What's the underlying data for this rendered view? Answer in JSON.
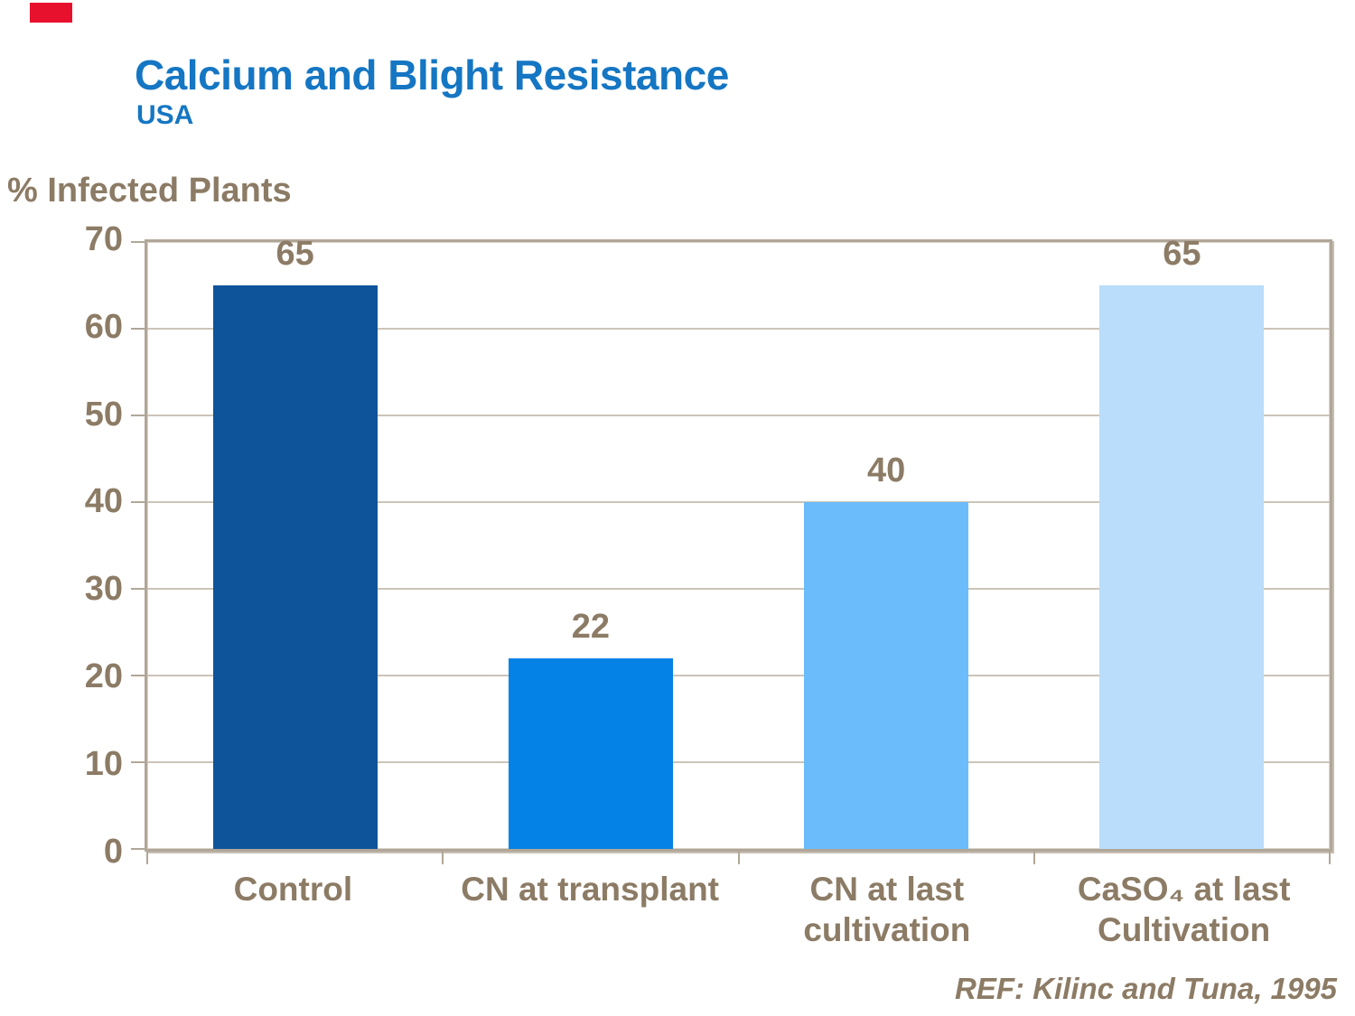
{
  "slide": {
    "title": "Calcium and Blight Resistance",
    "subtitle": "USA",
    "reference": "REF: Kilinc and Tuna, 1995"
  },
  "colors": {
    "title_blue": "#1576C3",
    "text_brown": "#8C7B65",
    "frame_tan": "#B0A799",
    "gridline_tan": "#CCC4B8",
    "accent_red": "#E8112D",
    "bar_dark_blue": "#0D549B",
    "bar_blue": "#0482E6",
    "bar_light_blue": "#6BBCFB",
    "bar_pale_blue": "#B9DDFB"
  },
  "chart_data": {
    "type": "bar",
    "title": "Calcium and Blight Resistance",
    "subtitle": "USA",
    "ylabel": "% Infected Plants",
    "xlabel": "",
    "ylim": [
      0,
      70
    ],
    "yticks": [
      0,
      10,
      20,
      30,
      40,
      50,
      60,
      70
    ],
    "grid": true,
    "legend_position": "none",
    "categories": [
      "Control",
      "CN at transplant",
      "CN at last cultivation",
      "CaSO₄ at last Cultivation"
    ],
    "category_lines": [
      [
        "Control"
      ],
      [
        "CN at transplant"
      ],
      [
        "CN at last",
        "cultivation"
      ],
      [
        "CaSO₄ at last",
        "Cultivation"
      ]
    ],
    "values": [
      65,
      22,
      40,
      65
    ],
    "value_labels": [
      "65",
      "22",
      "40",
      "65"
    ],
    "bar_colors": [
      "#0D549B",
      "#0482E6",
      "#6BBCFB",
      "#B9DDFB"
    ],
    "annotation": "REF: Kilinc and Tuna, 1995"
  }
}
